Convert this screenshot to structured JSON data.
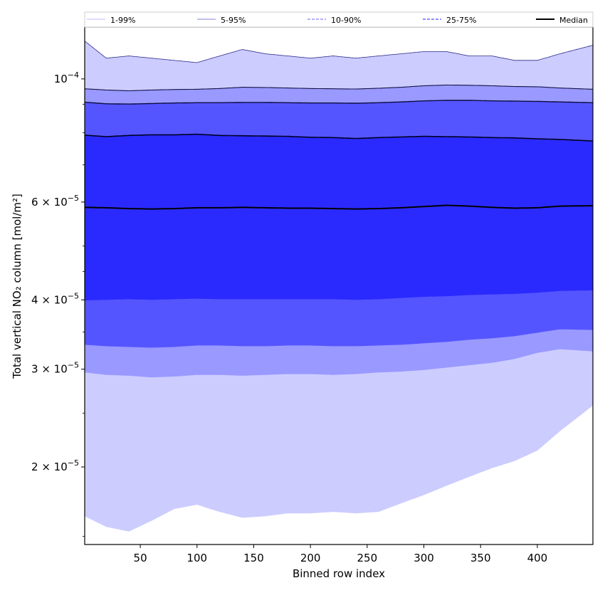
{
  "chart_data": {
    "type": "area",
    "xlabel": "Binned row index",
    "ylabel": "Total vertical NO₂ column [mol/m²]",
    "yscale": "log",
    "xlim": [
      1,
      449
    ],
    "ylim": [
      1.45e-05,
      0.000124
    ],
    "grid": false,
    "legend_position": "top",
    "x_ticks": [
      50,
      100,
      150,
      200,
      250,
      300,
      350,
      400
    ],
    "x_tick_labels": [
      "50",
      "100",
      "150",
      "200",
      "250",
      "300",
      "350",
      "400"
    ],
    "y_ticks": [
      {
        "value": 0.0001,
        "base": "10",
        "exp": "−4",
        "mantissa": ""
      },
      {
        "value": 6e-05,
        "base": "10",
        "exp": "−5",
        "mantissa": "6"
      },
      {
        "value": 4e-05,
        "base": "10",
        "exp": "−5",
        "mantissa": "4"
      },
      {
        "value": 3e-05,
        "base": "10",
        "exp": "−5",
        "mantissa": "3"
      },
      {
        "value": 2e-05,
        "base": "10",
        "exp": "−5",
        "mantissa": "2"
      }
    ],
    "x": [
      1,
      20,
      40,
      60,
      80,
      100,
      120,
      140,
      160,
      180,
      200,
      220,
      240,
      260,
      280,
      300,
      320,
      340,
      360,
      380,
      400,
      420,
      449
    ],
    "bands": [
      {
        "name": "1-99%",
        "color": "#ccccff",
        "line_color": "#b0b0ff",
        "line_style": "solid",
        "lower": [
          1.63e-05,
          1.56e-05,
          1.53e-05,
          1.6e-05,
          1.68e-05,
          1.71e-05,
          1.66e-05,
          1.62e-05,
          1.63e-05,
          1.65e-05,
          1.65e-05,
          1.66e-05,
          1.65e-05,
          1.66e-05,
          1.72e-05,
          1.78e-05,
          1.85e-05,
          1.92e-05,
          1.99e-05,
          2.05e-05,
          2.14e-05,
          2.32e-05,
          2.58e-05
        ],
        "upper": [
          0.000117,
          0.000109,
          0.00011,
          0.000109,
          0.000108,
          0.000107,
          0.00011,
          0.000113,
          0.000111,
          0.00011,
          0.000109,
          0.00011,
          0.000109,
          0.00011,
          0.000111,
          0.000112,
          0.000112,
          0.00011,
          0.00011,
          0.000108,
          0.000108,
          0.000111,
          0.000115
        ]
      },
      {
        "name": "5-95%",
        "color": "#9999ff",
        "line_color": "#0b0b55",
        "line_style": "solid",
        "lower": [
          2.96e-05,
          2.93e-05,
          2.92e-05,
          2.9e-05,
          2.91e-05,
          2.93e-05,
          2.93e-05,
          2.92e-05,
          2.93e-05,
          2.94e-05,
          2.94e-05,
          2.93e-05,
          2.94e-05,
          2.96e-05,
          2.97e-05,
          2.99e-05,
          3.02e-05,
          3.05e-05,
          3.08e-05,
          3.13e-05,
          3.21e-05,
          3.26e-05,
          3.23e-05
        ]
      },
      {
        "name": "10-90%",
        "color": "#5555ff",
        "line_color": "#7777ff",
        "line_style": "dashed",
        "lower": [
          3.32e-05,
          3.3e-05,
          3.29e-05,
          3.28e-05,
          3.29e-05,
          3.31e-05,
          3.31e-05,
          3.3e-05,
          3.3e-05,
          3.31e-05,
          3.31e-05,
          3.3e-05,
          3.3e-05,
          3.31e-05,
          3.32e-05,
          3.34e-05,
          3.36e-05,
          3.39e-05,
          3.41e-05,
          3.44e-05,
          3.49e-05,
          3.54e-05,
          3.53e-05
        ]
      },
      {
        "name": "25-75%",
        "color": "#2a2aff",
        "line_color": "#3a3aff",
        "line_style": "dashed",
        "lower": [
          3.99e-05,
          4e-05,
          4.01e-05,
          4e-05,
          4.01e-05,
          4.02e-05,
          4.01e-05,
          4.01e-05,
          4.01e-05,
          4.01e-05,
          4.01e-05,
          4.01e-05,
          4e-05,
          4.01e-05,
          4.03e-05,
          4.05e-05,
          4.06e-05,
          4.08e-05,
          4.09e-05,
          4.1e-05,
          4.12e-05,
          4.15e-05,
          4.16e-05
        ]
      }
    ],
    "upper_lines": [
      {
        "name": "5-95%",
        "values": [
          9.6e-05,
          9.55e-05,
          9.52e-05,
          9.55e-05,
          9.57e-05,
          9.58e-05,
          9.61e-05,
          9.66e-05,
          9.65e-05,
          9.63e-05,
          9.61e-05,
          9.6e-05,
          9.59e-05,
          9.62e-05,
          9.66e-05,
          9.72e-05,
          9.75e-05,
          9.74e-05,
          9.72e-05,
          9.69e-05,
          9.68e-05,
          9.63e-05,
          9.58e-05
        ]
      },
      {
        "name": "10-90%",
        "values": [
          9.08e-05,
          9.02e-05,
          9.01e-05,
          9.03e-05,
          9.05e-05,
          9.06e-05,
          9.06e-05,
          9.07e-05,
          9.07e-05,
          9.06e-05,
          9.05e-05,
          9.05e-05,
          9.04e-05,
          9.06e-05,
          9.09e-05,
          9.13e-05,
          9.15e-05,
          9.15e-05,
          9.13e-05,
          9.12e-05,
          9.11e-05,
          9.09e-05,
          9.06e-05
        ]
      },
      {
        "name": "25-75%",
        "values": [
          7.92e-05,
          7.87e-05,
          7.91e-05,
          7.93e-05,
          7.93e-05,
          7.95e-05,
          7.91e-05,
          7.9e-05,
          7.89e-05,
          7.88e-05,
          7.85e-05,
          7.84e-05,
          7.81e-05,
          7.84e-05,
          7.86e-05,
          7.88e-05,
          7.87e-05,
          7.86e-05,
          7.84e-05,
          7.83e-05,
          7.8e-05,
          7.78e-05,
          7.73e-05
        ]
      }
    ],
    "median": {
      "name": "Median",
      "color": "#000000",
      "values": [
        5.87e-05,
        5.86e-05,
        5.84e-05,
        5.83e-05,
        5.84e-05,
        5.86e-05,
        5.86e-05,
        5.87e-05,
        5.86e-05,
        5.85e-05,
        5.85e-05,
        5.84e-05,
        5.83e-05,
        5.84e-05,
        5.86e-05,
        5.89e-05,
        5.92e-05,
        5.9e-05,
        5.87e-05,
        5.85e-05,
        5.86e-05,
        5.9e-05,
        5.91e-05
      ]
    },
    "legend": [
      {
        "label": "1-99%",
        "color": "#c8c8ff",
        "style": "solid"
      },
      {
        "label": "5-95%",
        "color": "#9a9adf",
        "style": "solid"
      },
      {
        "label": "10-90%",
        "color": "#8080ff",
        "style": "dashed"
      },
      {
        "label": "25-75%",
        "color": "#4a4aff",
        "style": "dashed"
      },
      {
        "label": "Median",
        "color": "#000000",
        "style": "solid"
      }
    ]
  }
}
